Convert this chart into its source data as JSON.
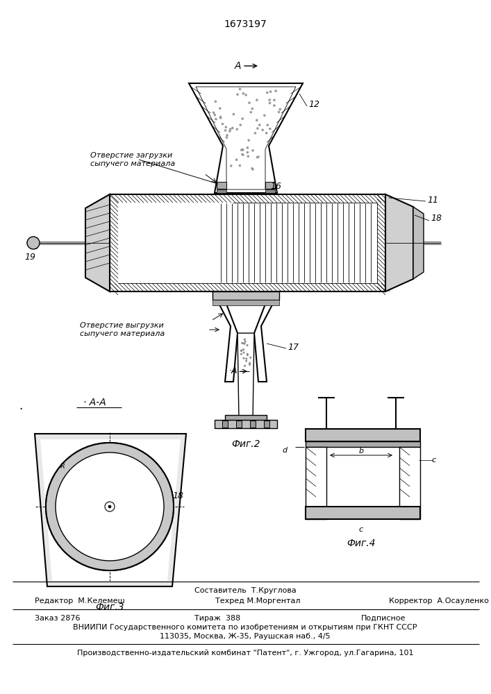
{
  "patent_number": "1673197",
  "background_color": "#ffffff",
  "line_color": "#000000",
  "fig_width": 7.07,
  "fig_height": 10.0,
  "dpi": 100,
  "label_loading": "Отверстие загрузки\nсыпучего материала",
  "label_unloading": "Отверстие выгрузки\nсыпучего материала",
  "fig2_label": "Фиг.2",
  "fig3_label": "Фиг.3",
  "fig4_label": "Фиг.4",
  "aa_label": "A-A"
}
